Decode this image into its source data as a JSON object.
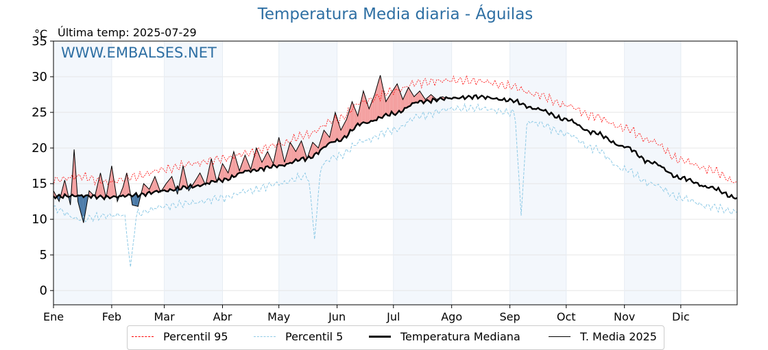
{
  "header": {
    "title": "Temperatura Media diaria - Águilas",
    "unit": "°C",
    "last_temp": "Última temp: 2025-07-29"
  },
  "watermark": "WWW.EMBALSES.NET",
  "legend": {
    "p95": "Percentil 95",
    "p5": "Percentil 5",
    "median": "Temperatura Mediana",
    "current": "T. Media 2025"
  },
  "colors": {
    "p95": "#ff0000",
    "p5": "#8ecae6",
    "median": "#000000",
    "current": "#000000",
    "above": "#f4a0a0",
    "below": "#4a7aa8",
    "band": "#dde8f4"
  },
  "chart_data": {
    "type": "line",
    "ylim": [
      -2,
      35
    ],
    "yticks": [
      0,
      5,
      10,
      15,
      20,
      25,
      30,
      35
    ],
    "month_labels": [
      "Ene",
      "Feb",
      "Mar",
      "Abr",
      "May",
      "Jun",
      "Jul",
      "Ago",
      "Sep",
      "Oct",
      "Nov",
      "Dic"
    ],
    "median_keypoints": {
      "day": [
        1,
        15,
        30,
        45,
        60,
        75,
        91,
        105,
        121,
        135,
        152,
        166,
        182,
        196,
        213,
        227,
        244,
        258,
        274,
        288,
        305,
        319,
        335,
        350,
        365
      ],
      "value": [
        13.2,
        13.3,
        13.1,
        13.4,
        14.0,
        14.6,
        15.5,
        16.8,
        17.5,
        18.5,
        21.0,
        23.5,
        24.8,
        26.5,
        27.0,
        27.2,
        26.7,
        25.5,
        24.0,
        22.2,
        20.2,
        18.0,
        15.8,
        14.5,
        13.0
      ]
    },
    "p95_keypoints": {
      "day": [
        1,
        15,
        30,
        45,
        60,
        75,
        91,
        105,
        121,
        135,
        152,
        166,
        182,
        196,
        213,
        227,
        244,
        258,
        274,
        288,
        305,
        319,
        335,
        350,
        365
      ],
      "value": [
        15.5,
        16.0,
        15.2,
        16.0,
        17.0,
        17.8,
        18.5,
        19.3,
        20.5,
        21.8,
        24.0,
        26.5,
        28.0,
        29.2,
        29.5,
        29.4,
        28.7,
        27.5,
        26.0,
        24.5,
        22.8,
        21.0,
        18.3,
        17.0,
        15.2
      ]
    },
    "p5_keypoints": {
      "day": [
        1,
        15,
        30,
        45,
        60,
        75,
        91,
        105,
        121,
        135,
        152,
        166,
        182,
        196,
        213,
        227,
        244,
        258,
        274,
        288,
        305,
        319,
        335,
        350,
        365
      ],
      "value": [
        11.5,
        10.0,
        10.5,
        10.8,
        11.8,
        12.3,
        13.0,
        14.0,
        15.0,
        16.0,
        18.8,
        21.0,
        22.5,
        24.5,
        25.5,
        25.6,
        25.0,
        23.5,
        22.0,
        20.0,
        17.0,
        15.0,
        13.0,
        11.8,
        11.0
      ]
    },
    "p5_dips": [
      {
        "day": 42,
        "value": 3.3
      },
      {
        "day": 140,
        "value": 7.2
      },
      {
        "day": 250,
        "value": 10.5
      }
    ],
    "current_2025": {
      "day": [
        1,
        4,
        7,
        10,
        12,
        14,
        17,
        20,
        23,
        26,
        29,
        32,
        35,
        38,
        40,
        43,
        46,
        49,
        52,
        55,
        58,
        61,
        64,
        67,
        70,
        73,
        76,
        79,
        82,
        85,
        88,
        91,
        94,
        97,
        100,
        103,
        106,
        109,
        112,
        115,
        118,
        121,
        124,
        127,
        130,
        133,
        136,
        139,
        142,
        145,
        148,
        151,
        154,
        157,
        160,
        163,
        166,
        169,
        172,
        175,
        178,
        181,
        184,
        187,
        190,
        193,
        196,
        199,
        202,
        205,
        208,
        210
      ],
      "value": [
        14.0,
        12.5,
        15.5,
        12.0,
        19.8,
        12.5,
        9.5,
        14.0,
        13.2,
        16.5,
        13.0,
        17.5,
        12.5,
        14.5,
        16.5,
        12.0,
        11.8,
        15.0,
        14.2,
        16.0,
        13.8,
        15.0,
        16.0,
        13.5,
        17.5,
        14.0,
        15.2,
        16.5,
        14.8,
        18.5,
        15.2,
        17.8,
        16.5,
        19.5,
        16.8,
        19.0,
        17.0,
        20.0,
        18.0,
        19.5,
        17.8,
        21.5,
        18.0,
        20.8,
        19.5,
        21.0,
        18.5,
        20.8,
        20.0,
        22.5,
        21.5,
        25.0,
        22.5,
        24.0,
        26.5,
        24.5,
        28.0,
        25.5,
        27.5,
        30.2,
        26.5,
        27.8,
        29.0,
        26.8,
        28.5,
        27.2,
        28.0,
        26.8,
        27.5,
        26.8,
        27.2,
        27.0
      ]
    }
  }
}
